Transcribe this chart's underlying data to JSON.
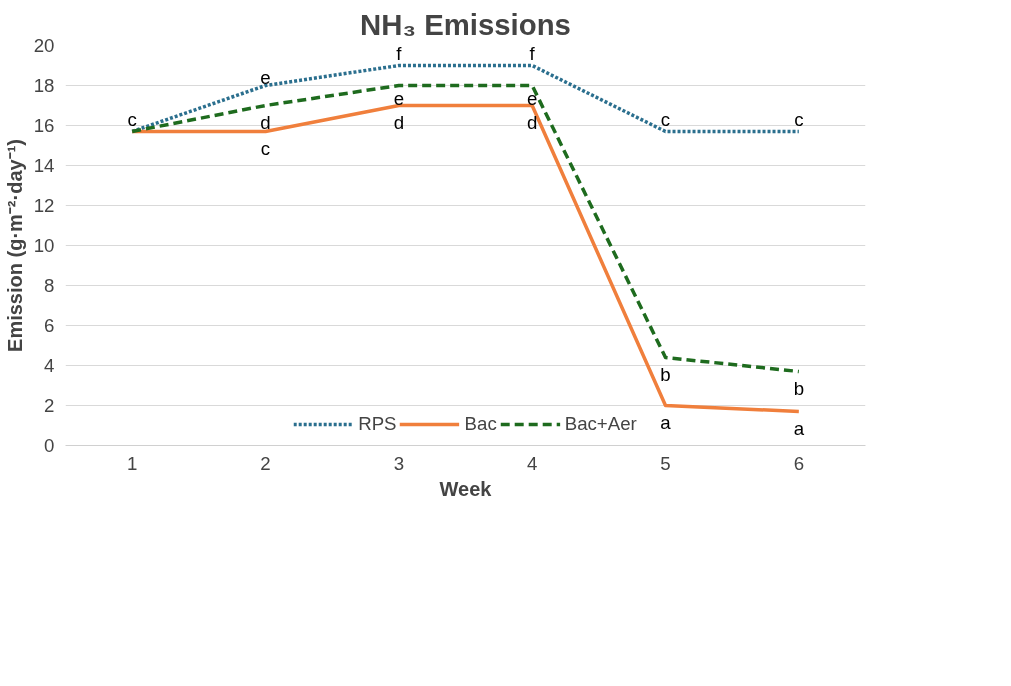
{
  "chart_data": {
    "type": "line",
    "title": "NH₃ Emissions",
    "xlabel": "Week",
    "ylabel": "Emission (g·m⁻²·day⁻¹)",
    "categories": [
      "1",
      "2",
      "3",
      "4",
      "5",
      "6"
    ],
    "series": [
      {
        "name": "RPS",
        "color": "#2b6f8e",
        "line_style": "dotted",
        "values": [
          15.7,
          18,
          19,
          19,
          15.7,
          15.7
        ]
      },
      {
        "name": "Bac",
        "color": "#f07f3c",
        "line_style": "solid",
        "values": [
          15.7,
          15.7,
          17,
          17,
          2.0,
          1.7
        ]
      },
      {
        "name": "Bac+Aer",
        "color": "#1e6b1e",
        "line_style": "dashed",
        "values": [
          15.7,
          17,
          18,
          18,
          4.4,
          3.7
        ]
      }
    ],
    "ylim": [
      0,
      20
    ],
    "yticks": [
      0,
      2,
      4,
      6,
      8,
      10,
      12,
      14,
      16,
      18,
      20
    ],
    "grid": "y",
    "legend": "bottom",
    "marker": "none",
    "annotations": [
      {
        "text": "c",
        "x": "1",
        "y": 15.7
      },
      {
        "text": "e",
        "x": "2",
        "y": 18
      },
      {
        "text": "d",
        "x": "2",
        "y": 17
      },
      {
        "text": "c",
        "x": "2",
        "y": 15.7
      },
      {
        "text": "f",
        "x": "3",
        "y": 19
      },
      {
        "text": "e",
        "x": "3",
        "y": 18
      },
      {
        "text": "d",
        "x": "3",
        "y": 17
      },
      {
        "text": "f",
        "x": "4",
        "y": 19
      },
      {
        "text": "e",
        "x": "4",
        "y": 18
      },
      {
        "text": "d",
        "x": "4",
        "y": 17
      },
      {
        "text": "c",
        "x": "5",
        "y": 15.7
      },
      {
        "text": "b",
        "x": "5",
        "y": 4.4
      },
      {
        "text": "a",
        "x": "5",
        "y": 2.0
      },
      {
        "text": "c",
        "x": "6",
        "y": 15.7
      },
      {
        "text": "b",
        "x": "6",
        "y": 3.7
      },
      {
        "text": "a",
        "x": "6",
        "y": 1.7
      }
    ]
  }
}
